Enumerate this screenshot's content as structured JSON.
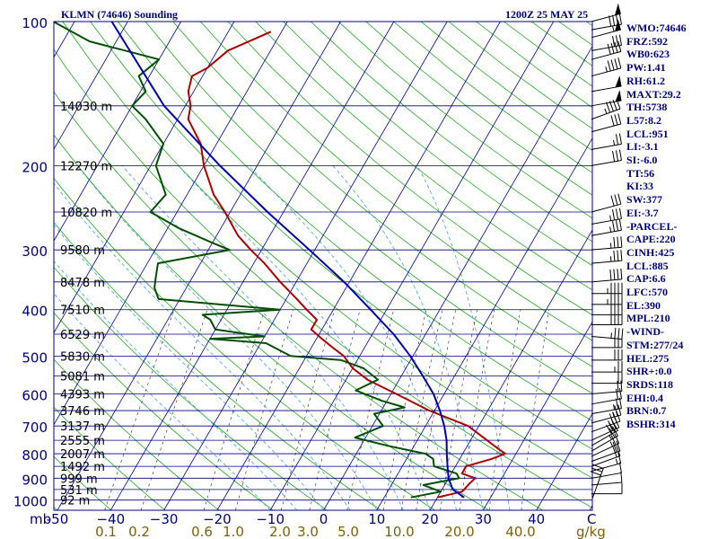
{
  "header": {
    "station": "KLMN (74646) Sounding",
    "time": "1200Z 25 MAY 25"
  },
  "stats": [
    "WMO:74646",
    "FRZ:592",
    "WB0:623",
    "PW:1.41",
    "RH:61.2",
    "MAXT:29.2",
    "TH:5738",
    "L57:8.2",
    "LCL:951",
    "LI:-3.1",
    "SI:-6.0",
    "TT:56",
    "KI:33",
    "SW:377",
    "EI:-3.7",
    "-PARCEL-",
    "CAPE:220",
    "CINH:425",
    "LCL:885",
    "CAP:6.6",
    "LFC:570",
    "EL:390",
    "MPL:210",
    "-WIND-",
    "STM:277/24",
    "HEL:275",
    "SHR+:0.0",
    "SRDS:118",
    "EHI:0.4",
    "BRN:0.7",
    "BSHR:314"
  ],
  "chart_data": {
    "type": "skew-t",
    "pressure_unit": "mb",
    "pressure_ticks": [
      {
        "p": 100,
        "label": "100"
      },
      {
        "p": 200,
        "label": "200"
      },
      {
        "p": 300,
        "label": "300"
      },
      {
        "p": 400,
        "label": "400"
      },
      {
        "p": 500,
        "label": "500"
      },
      {
        "p": 600,
        "label": "600"
      },
      {
        "p": 700,
        "label": "700"
      },
      {
        "p": 800,
        "label": "800"
      },
      {
        "p": 900,
        "label": "900"
      },
      {
        "p": 1000,
        "label": "1000"
      }
    ],
    "temperature_unit": "C",
    "temperature_ticks": [
      {
        "t": -50,
        "label": "-50"
      },
      {
        "t": -40,
        "label": "−40"
      },
      {
        "t": -30,
        "label": "−30"
      },
      {
        "t": -20,
        "label": "−20"
      },
      {
        "t": -10,
        "label": "−10"
      },
      {
        "t": 0,
        "label": "0"
      },
      {
        "t": 10,
        "label": "10"
      },
      {
        "t": 20,
        "label": "20"
      },
      {
        "t": 30,
        "label": "30"
      },
      {
        "t": 40,
        "label": "40"
      }
    ],
    "mixing_ratio_unit": "g/kg",
    "mixing_ratio_ticks": [
      "0.1",
      "0.2",
      "0.6",
      "1.0",
      "2.0",
      "3.0",
      "5.0",
      "10.0",
      "20.0",
      "40.0"
    ],
    "height_levels": [
      {
        "p": 150,
        "label": "14030 m"
      },
      {
        "p": 200,
        "label": "12270 m"
      },
      {
        "p": 250,
        "label": "10820 m"
      },
      {
        "p": 300,
        "label": "9580 m"
      },
      {
        "p": 350,
        "label": "8478 m"
      },
      {
        "p": 400,
        "label": "7510 m"
      },
      {
        "p": 450,
        "label": "6529 m"
      },
      {
        "p": 500,
        "label": "5830 m"
      },
      {
        "p": 550,
        "label": "5081 m"
      },
      {
        "p": 600,
        "label": "4393 m"
      },
      {
        "p": 650,
        "label": "3746 m"
      },
      {
        "p": 700,
        "label": "3137 m"
      },
      {
        "p": 750,
        "label": "2555 m"
      },
      {
        "p": 800,
        "label": "2007 m"
      },
      {
        "p": 850,
        "label": "1492 m"
      },
      {
        "p": 900,
        "label": "999 m"
      },
      {
        "p": 950,
        "label": "531 m"
      },
      {
        "p": 1000,
        "label": "92 m"
      }
    ],
    "series": [
      {
        "kind": "temperature",
        "color": "#b00000",
        "points": [
          [
            987,
            20
          ],
          [
            960,
            24
          ],
          [
            925,
            24.5
          ],
          [
            900,
            25
          ],
          [
            880,
            22
          ],
          [
            850,
            22
          ],
          [
            820,
            26
          ],
          [
            800,
            28
          ],
          [
            780,
            26
          ],
          [
            700,
            18
          ],
          [
            650,
            9
          ],
          [
            600,
            1
          ],
          [
            560,
            -6
          ],
          [
            530,
            -10
          ],
          [
            500,
            -13
          ],
          [
            480,
            -16
          ],
          [
            460,
            -19
          ],
          [
            440,
            -22
          ],
          [
            420,
            -22
          ],
          [
            400,
            -25
          ],
          [
            380,
            -28
          ],
          [
            350,
            -33
          ],
          [
            320,
            -38
          ],
          [
            300,
            -42
          ],
          [
            280,
            -46
          ],
          [
            250,
            -51
          ],
          [
            230,
            -55
          ],
          [
            200,
            -60
          ],
          [
            180,
            -63
          ],
          [
            160,
            -68
          ],
          [
            150,
            -69
          ],
          [
            140,
            -71
          ],
          [
            130,
            -72
          ],
          [
            125,
            -70
          ],
          [
            115,
            -68
          ],
          [
            105,
            -62
          ]
        ]
      },
      {
        "kind": "dewpoint",
        "color": "#005000",
        "points": [
          [
            987,
            15
          ],
          [
            960,
            20
          ],
          [
            930,
            16
          ],
          [
            900,
            22
          ],
          [
            880,
            21
          ],
          [
            850,
            16
          ],
          [
            820,
            15
          ],
          [
            800,
            13
          ],
          [
            770,
            5
          ],
          [
            740,
            -2
          ],
          [
            700,
            2
          ],
          [
            660,
            -1
          ],
          [
            640,
            4
          ],
          [
            620,
            -1
          ],
          [
            590,
            -7
          ],
          [
            560,
            -4
          ],
          [
            530,
            -8
          ],
          [
            510,
            -13
          ],
          [
            500,
            -23
          ],
          [
            470,
            -29
          ],
          [
            460,
            -40
          ],
          [
            455,
            -30
          ],
          [
            440,
            -40
          ],
          [
            430,
            -41
          ],
          [
            420,
            -42
          ],
          [
            410,
            -44
          ],
          [
            400,
            -30
          ],
          [
            380,
            -54
          ],
          [
            360,
            -56
          ],
          [
            340,
            -57
          ],
          [
            320,
            -58
          ],
          [
            300,
            -46
          ],
          [
            290,
            -50
          ],
          [
            270,
            -58
          ],
          [
            250,
            -65
          ],
          [
            230,
            -64
          ],
          [
            200,
            -69
          ],
          [
            180,
            -70
          ],
          [
            160,
            -76
          ],
          [
            150,
            -80
          ],
          [
            140,
            -79
          ],
          [
            130,
            -82
          ],
          [
            120,
            -80
          ],
          [
            110,
            -95
          ],
          [
            100,
            -104
          ]
        ]
      },
      {
        "kind": "parcel",
        "color": "#0000b0",
        "points": [
          [
            987,
            25
          ],
          [
            950,
            22
          ],
          [
            900,
            20
          ],
          [
            850,
            18.5
          ],
          [
            800,
            17
          ],
          [
            750,
            15.5
          ],
          [
            700,
            13.5
          ],
          [
            650,
            11
          ],
          [
            600,
            8
          ],
          [
            550,
            4
          ],
          [
            500,
            -0.5
          ],
          [
            450,
            -6
          ],
          [
            400,
            -13
          ],
          [
            350,
            -21
          ],
          [
            300,
            -31
          ],
          [
            250,
            -43
          ],
          [
            200,
            -57
          ],
          [
            150,
            -74
          ],
          [
            100,
            -93
          ]
        ]
      }
    ],
    "wind_barbs": [
      {
        "p": 970,
        "dir": 270,
        "spd": 8
      },
      {
        "p": 930,
        "dir": 265,
        "spd": 10
      },
      {
        "p": 900,
        "dir": 260,
        "spd": 12
      },
      {
        "p": 870,
        "dir": 255,
        "spd": 15
      },
      {
        "p": 850,
        "dir": 250,
        "spd": 18
      },
      {
        "p": 830,
        "dir": 250,
        "spd": 20
      },
      {
        "p": 810,
        "dir": 245,
        "spd": 25
      },
      {
        "p": 790,
        "dir": 240,
        "spd": 25
      },
      {
        "p": 770,
        "dir": 240,
        "spd": 30
      },
      {
        "p": 750,
        "dir": 245,
        "spd": 30
      },
      {
        "p": 720,
        "dir": 250,
        "spd": 30
      },
      {
        "p": 690,
        "dir": 255,
        "spd": 25
      },
      {
        "p": 660,
        "dir": 260,
        "spd": 25
      },
      {
        "p": 630,
        "dir": 260,
        "spd": 20
      },
      {
        "p": 600,
        "dir": 265,
        "spd": 20
      },
      {
        "p": 570,
        "dir": 270,
        "spd": 20
      },
      {
        "p": 540,
        "dir": 270,
        "spd": 25
      },
      {
        "p": 510,
        "dir": 270,
        "spd": 30
      },
      {
        "p": 480,
        "dir": 270,
        "spd": 30
      },
      {
        "p": 455,
        "dir": 275,
        "spd": 35
      },
      {
        "p": 430,
        "dir": 270,
        "spd": 40
      },
      {
        "p": 410,
        "dir": 270,
        "spd": 40
      },
      {
        "p": 390,
        "dir": 270,
        "spd": 45
      },
      {
        "p": 370,
        "dir": 270,
        "spd": 45
      },
      {
        "p": 350,
        "dir": 265,
        "spd": 40
      },
      {
        "p": 320,
        "dir": 265,
        "spd": 35
      },
      {
        "p": 300,
        "dir": 265,
        "spd": 35
      },
      {
        "p": 280,
        "dir": 260,
        "spd": 35
      },
      {
        "p": 265,
        "dir": 260,
        "spd": 35
      },
      {
        "p": 250,
        "dir": 255,
        "spd": 30
      },
      {
        "p": 200,
        "dir": 260,
        "spd": 30
      },
      {
        "p": 185,
        "dir": 260,
        "spd": 25
      },
      {
        "p": 170,
        "dir": 255,
        "spd": 30
      },
      {
        "p": 160,
        "dir": 250,
        "spd": 45
      },
      {
        "p": 150,
        "dir": 260,
        "spd": 50
      },
      {
        "p": 140,
        "dir": 260,
        "spd": 50
      },
      {
        "p": 130,
        "dir": 255,
        "spd": 45
      },
      {
        "p": 120,
        "dir": 255,
        "spd": 40
      },
      {
        "p": 115,
        "dir": 260,
        "spd": 30
      },
      {
        "p": 108,
        "dir": 255,
        "spd": 55
      },
      {
        "p": 104,
        "dir": 260,
        "spd": 40
      },
      {
        "p": 100,
        "dir": 255,
        "spd": 50
      }
    ],
    "surface_wind": {
      "dir": 200,
      "spd": 30
    }
  },
  "colors": {
    "isobar": "#000080",
    "isotherm": "#0000a0",
    "dry_adiabat": "#00a000",
    "mixing_ratio": "#202020",
    "moist_adiabat": "#40a0d8",
    "label": "#000080",
    "mixing_label": "#806000",
    "barb": "#000000"
  }
}
